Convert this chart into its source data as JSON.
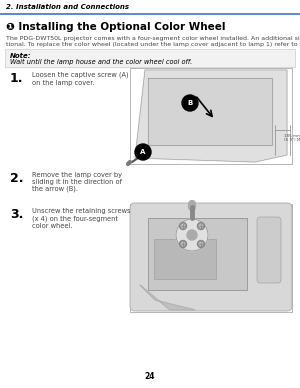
{
  "page_bg": "#ffffff",
  "header_text": "2. Installation and Connections",
  "header_line_color": "#4472c4",
  "header_text_color": "#000000",
  "section_bullet": "❶",
  "section_title": "Installing the Optional Color Wheel",
  "body_text1": "The PDG-DWT50L projector comes with a four-segment color wheel installed. An additional six-segment color wheel is op-",
  "body_text2": "tional. To replace the color wheel (located under the lamp cover adjacent to lamp 1) refer to the following guide.",
  "note_label": "Note:",
  "note_text": "Wait until the lamp house and the color wheel cool off.",
  "step1_num": "1.",
  "step1_text": "Loosen the captive screw (A)\non the lamp cover.",
  "step2_num": "2.",
  "step2_text": "Remove the lamp cover by\nsliding it in the direction of\nthe arrow (B).",
  "step3_num": "3.",
  "step3_text": "Unscrew the retaining screws\n(x 4) on the four-segment\ncolor wheel.",
  "page_num": "24",
  "text_color": "#444444",
  "step_num_color": "#000000",
  "title_color": "#000000",
  "note_bg": "#f2f2f2",
  "note_border": "#cccccc",
  "img_border": "#aaaaaa",
  "img_bg": "#ffffff"
}
